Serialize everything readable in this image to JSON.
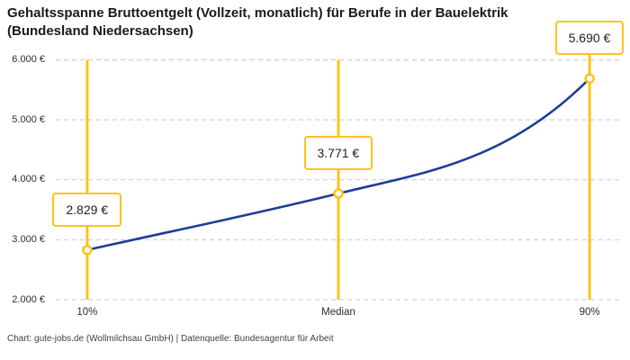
{
  "chart_data": {
    "type": "line",
    "title": "Gehaltsspanne Bruttoentgelt (Vollzeit, monatlich) für Berufe in der Bauelektrik\n(Bundesland Niedersachsen)",
    "source": "Chart: gute-jobs.de (Wollmilchsau GmbH) | Datenquelle: Bundesagentur für Arbeit",
    "categories": [
      "10%",
      "Median",
      "90%"
    ],
    "x_percentiles": [
      10,
      50,
      90
    ],
    "values": [
      2829,
      3771,
      5690
    ],
    "value_labels": [
      "2.829 €",
      "3.771 €",
      "5.690 €"
    ],
    "xlim": [
      5,
      95
    ],
    "ylim": [
      2000,
      6000
    ],
    "yticks": [
      2000,
      3000,
      4000,
      5000,
      6000
    ],
    "ytick_labels": [
      "2.000 €",
      "3.000 €",
      "4.000 €",
      "5.000 €",
      "6.000 €"
    ],
    "grid": true,
    "legend": "none",
    "annotation_style": "vertical percentile marker lines with value callout boxes",
    "colors": {
      "curve": "#1F3D99",
      "marker_accent": "#FCC419",
      "gridline": "#C9C9C9",
      "title_text": "#1A1A1A",
      "axis_text": "#2E2E2E",
      "source_text": "#3F3F3F",
      "background": "#FFFFFF"
    }
  }
}
